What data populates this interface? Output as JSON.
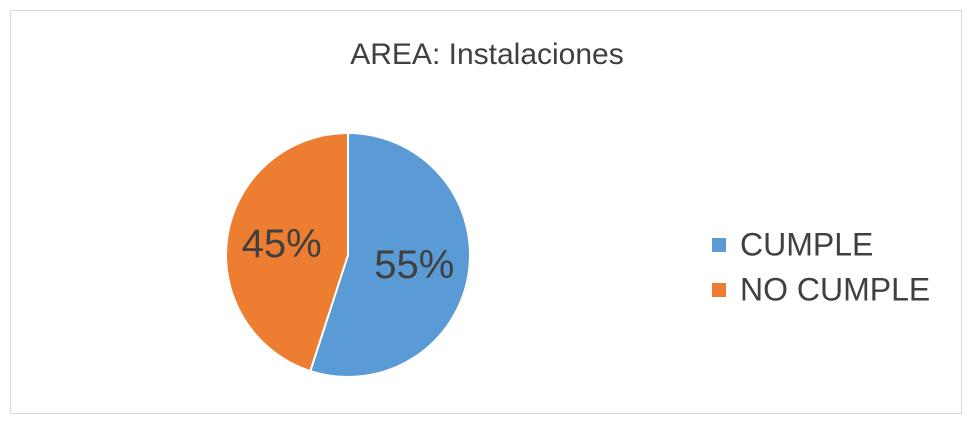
{
  "chart_data": {
    "type": "pie",
    "title": "AREA: Instalaciones",
    "categories": [
      "CUMPLE",
      "NO CUMPLE"
    ],
    "values": [
      55,
      45
    ],
    "value_labels": [
      "55%",
      "45%"
    ],
    "colors": [
      "#5b9bd5",
      "#ed7d31"
    ],
    "legend": "right"
  }
}
